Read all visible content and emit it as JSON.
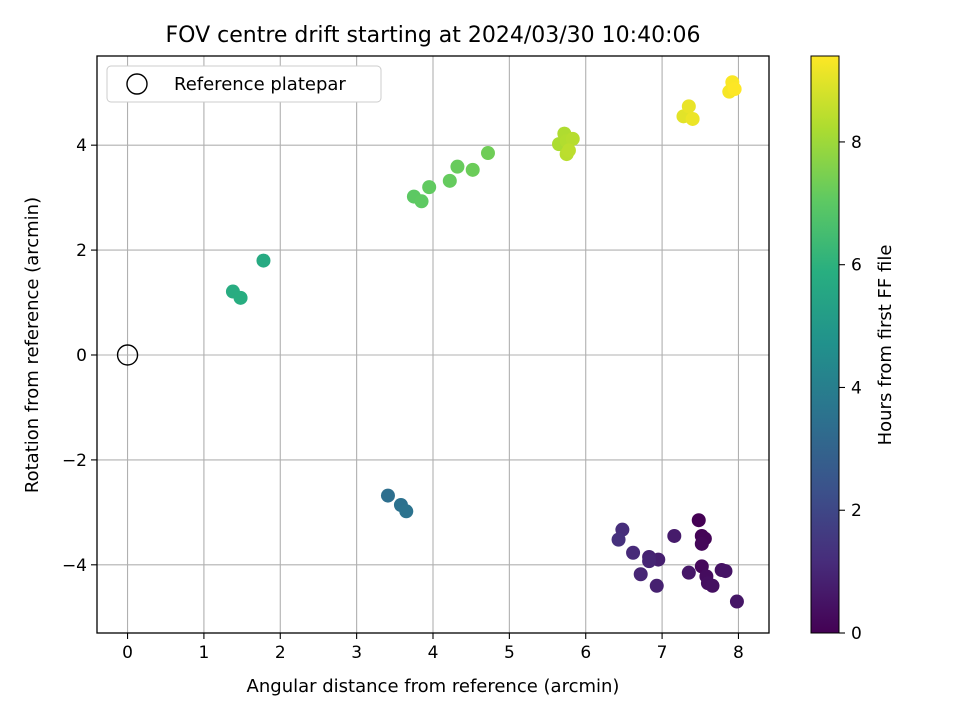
{
  "chart_data": {
    "type": "scatter",
    "title": "FOV centre drift starting at 2024/03/30 10:40:06",
    "xlabel": "Angular distance from reference (arcmin)",
    "ylabel": "Rotation from reference (arcmin)",
    "xlim": [
      -0.4,
      8.4
    ],
    "ylim": [
      -5.3,
      5.7
    ],
    "xticks": [
      0,
      1,
      2,
      3,
      4,
      5,
      6,
      7,
      8
    ],
    "yticks": [
      -4,
      -2,
      0,
      2,
      4
    ],
    "ytick_labels": [
      "−4",
      "−2",
      "0",
      "2",
      "4"
    ],
    "grid": true,
    "legend": {
      "placement": "top-left",
      "entries": [
        "Reference platepar"
      ]
    },
    "reference_point": {
      "x": 0,
      "y": 0,
      "name": "Reference platepar"
    },
    "colorbar": {
      "label": "Hours from first FF file",
      "range": [
        0,
        9.4
      ],
      "ticks": [
        0,
        2,
        4,
        6,
        8
      ],
      "colormap": "viridis"
    },
    "points": [
      {
        "x": 7.48,
        "y": -3.15,
        "h": 0.0
      },
      {
        "x": 7.52,
        "y": -3.45,
        "h": 0.05
      },
      {
        "x": 7.56,
        "y": -3.5,
        "h": 0.1
      },
      {
        "x": 7.52,
        "y": -3.6,
        "h": 0.15
      },
      {
        "x": 7.52,
        "y": -4.03,
        "h": 0.2
      },
      {
        "x": 7.58,
        "y": -4.22,
        "h": 0.3
      },
      {
        "x": 7.6,
        "y": -4.35,
        "h": 0.35
      },
      {
        "x": 7.66,
        "y": -4.4,
        "h": 0.4
      },
      {
        "x": 7.78,
        "y": -4.1,
        "h": 0.45
      },
      {
        "x": 7.83,
        "y": -4.12,
        "h": 0.5
      },
      {
        "x": 7.98,
        "y": -4.7,
        "h": 0.55
      },
      {
        "x": 7.35,
        "y": -4.15,
        "h": 0.6
      },
      {
        "x": 7.16,
        "y": -3.45,
        "h": 0.7
      },
      {
        "x": 6.95,
        "y": -3.9,
        "h": 0.8
      },
      {
        "x": 6.93,
        "y": -4.4,
        "h": 0.85
      },
      {
        "x": 6.83,
        "y": -3.85,
        "h": 0.9
      },
      {
        "x": 6.83,
        "y": -3.93,
        "h": 0.95
      },
      {
        "x": 6.72,
        "y": -4.18,
        "h": 1.0
      },
      {
        "x": 6.62,
        "y": -3.77,
        "h": 1.1
      },
      {
        "x": 6.48,
        "y": -3.33,
        "h": 1.2
      },
      {
        "x": 6.43,
        "y": -3.52,
        "h": 1.3
      },
      {
        "x": 3.41,
        "y": -2.68,
        "h": 3.4
      },
      {
        "x": 3.58,
        "y": -2.86,
        "h": 3.5
      },
      {
        "x": 3.65,
        "y": -2.98,
        "h": 3.55
      },
      {
        "x": 1.78,
        "y": 1.8,
        "h": 5.7
      },
      {
        "x": 1.38,
        "y": 1.21,
        "h": 5.8
      },
      {
        "x": 1.48,
        "y": 1.09,
        "h": 5.85
      },
      {
        "x": 3.75,
        "y": 3.02,
        "h": 7.0
      },
      {
        "x": 3.85,
        "y": 2.93,
        "h": 7.05
      },
      {
        "x": 3.95,
        "y": 3.2,
        "h": 7.1
      },
      {
        "x": 4.22,
        "y": 3.32,
        "h": 7.15
      },
      {
        "x": 4.32,
        "y": 3.59,
        "h": 7.2
      },
      {
        "x": 4.52,
        "y": 3.53,
        "h": 7.25
      },
      {
        "x": 4.72,
        "y": 3.85,
        "h": 7.3
      },
      {
        "x": 5.65,
        "y": 4.02,
        "h": 8.2
      },
      {
        "x": 5.72,
        "y": 4.22,
        "h": 8.25
      },
      {
        "x": 5.75,
        "y": 4.08,
        "h": 8.3
      },
      {
        "x": 5.83,
        "y": 4.12,
        "h": 8.35
      },
      {
        "x": 5.75,
        "y": 3.83,
        "h": 8.4
      },
      {
        "x": 5.78,
        "y": 3.9,
        "h": 8.45
      },
      {
        "x": 7.28,
        "y": 4.55,
        "h": 9.0
      },
      {
        "x": 7.35,
        "y": 4.74,
        "h": 9.1
      },
      {
        "x": 7.4,
        "y": 4.5,
        "h": 9.15
      },
      {
        "x": 7.88,
        "y": 5.02,
        "h": 9.3
      },
      {
        "x": 7.92,
        "y": 5.2,
        "h": 9.35
      },
      {
        "x": 7.95,
        "y": 5.07,
        "h": 9.4
      }
    ]
  }
}
